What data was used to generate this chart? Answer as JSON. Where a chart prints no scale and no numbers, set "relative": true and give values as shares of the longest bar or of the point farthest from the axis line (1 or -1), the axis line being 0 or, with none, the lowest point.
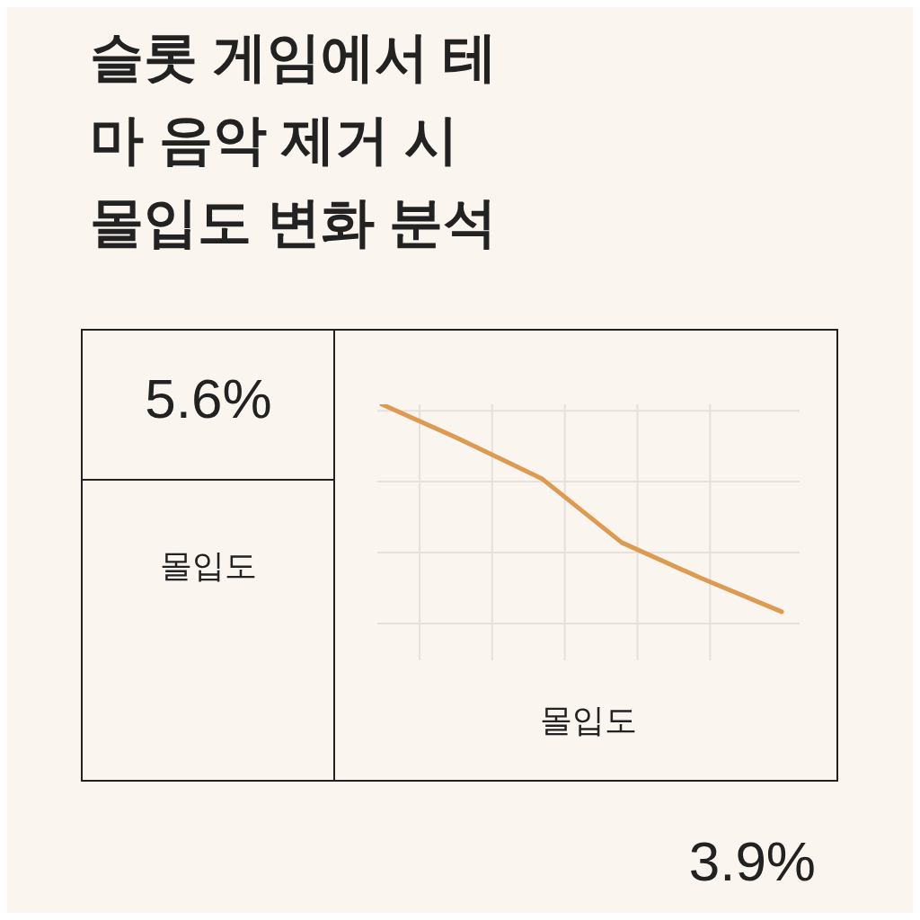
{
  "chart_data": {
    "type": "line",
    "title": "슬롯 게임에서 테마 음악 제거 시 몰입도 변화 분석",
    "xlabel": "몰입도",
    "ylabel": "몰입도",
    "relative": true,
    "grid": true,
    "marker": "none",
    "line_style": "solid",
    "categories": [
      null,
      null,
      null,
      null,
      null,
      null
    ],
    "series": [
      {
        "color": "#dc9a52",
        "values": [
          1,
          0.86,
          0.71,
          0.46,
          0.32,
          0.19
        ]
      }
    ],
    "annotations": [
      "5.6%",
      "3.9%"
    ]
  }
}
